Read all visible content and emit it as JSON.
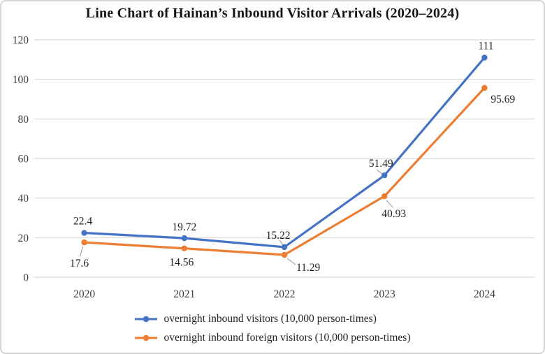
{
  "chart_data": {
    "type": "line",
    "title": "Line Chart of Hainan’s Inbound Visitor Arrivals (2020–2024)",
    "categories": [
      "2020",
      "2021",
      "2022",
      "2023",
      "2024"
    ],
    "xlabel": "",
    "ylabel": "",
    "ylim": [
      0,
      120
    ],
    "yticks": [
      0,
      20,
      40,
      60,
      80,
      100,
      120
    ],
    "grid": true,
    "legend_position": "bottom",
    "colors": {
      "gridline": "#d9d9d9",
      "axis_label": "#3d3d3d",
      "data_label": "#1f1f1f",
      "leader_line": "#a6a6a6"
    },
    "series": [
      {
        "name": "overnight inbound visitors (10,000 person-times)",
        "color": "#4472C4",
        "values": [
          22.4,
          19.72,
          15.22,
          51.49,
          111
        ],
        "labels": [
          {
            "text": "22.4",
            "dx": -2,
            "dy": -12,
            "anchor": "middle"
          },
          {
            "text": "19.72",
            "dx": 0,
            "dy": -11,
            "anchor": "middle"
          },
          {
            "text": "15.22",
            "dx": -9,
            "dy": -12,
            "anchor": "middle",
            "leader": [
              -7,
              -10,
              -2,
              -3
            ]
          },
          {
            "text": "51.49",
            "dx": -5,
            "dy": -12,
            "anchor": "middle",
            "leader": [
              -11,
              -8,
              -3,
              -2
            ]
          },
          {
            "text": "111",
            "dx": 2,
            "dy": -12,
            "anchor": "middle"
          }
        ]
      },
      {
        "name": "overnight inbound foreign visitors (10,000 person-times)",
        "color": "#ED7D31",
        "values": [
          17.6,
          14.56,
          11.29,
          40.93,
          95.69
        ],
        "labels": [
          {
            "text": "17.6",
            "dx": -7,
            "dy": 35,
            "anchor": "middle",
            "leader": [
              -2,
              6,
              -6,
              20
            ]
          },
          {
            "text": "14.56",
            "dx": -4,
            "dy": 25,
            "anchor": "middle"
          },
          {
            "text": "11.29",
            "dx": 17,
            "dy": 23,
            "anchor": "start",
            "leader": [
              4,
              5,
              16,
              14
            ]
          },
          {
            "text": "40.93",
            "dx": -4,
            "dy": 30,
            "anchor": "start",
            "leader": [
              3,
              6,
              12,
              16
            ]
          },
          {
            "text": "95.69",
            "dx": 9,
            "dy": 21,
            "anchor": "start"
          }
        ]
      }
    ]
  }
}
